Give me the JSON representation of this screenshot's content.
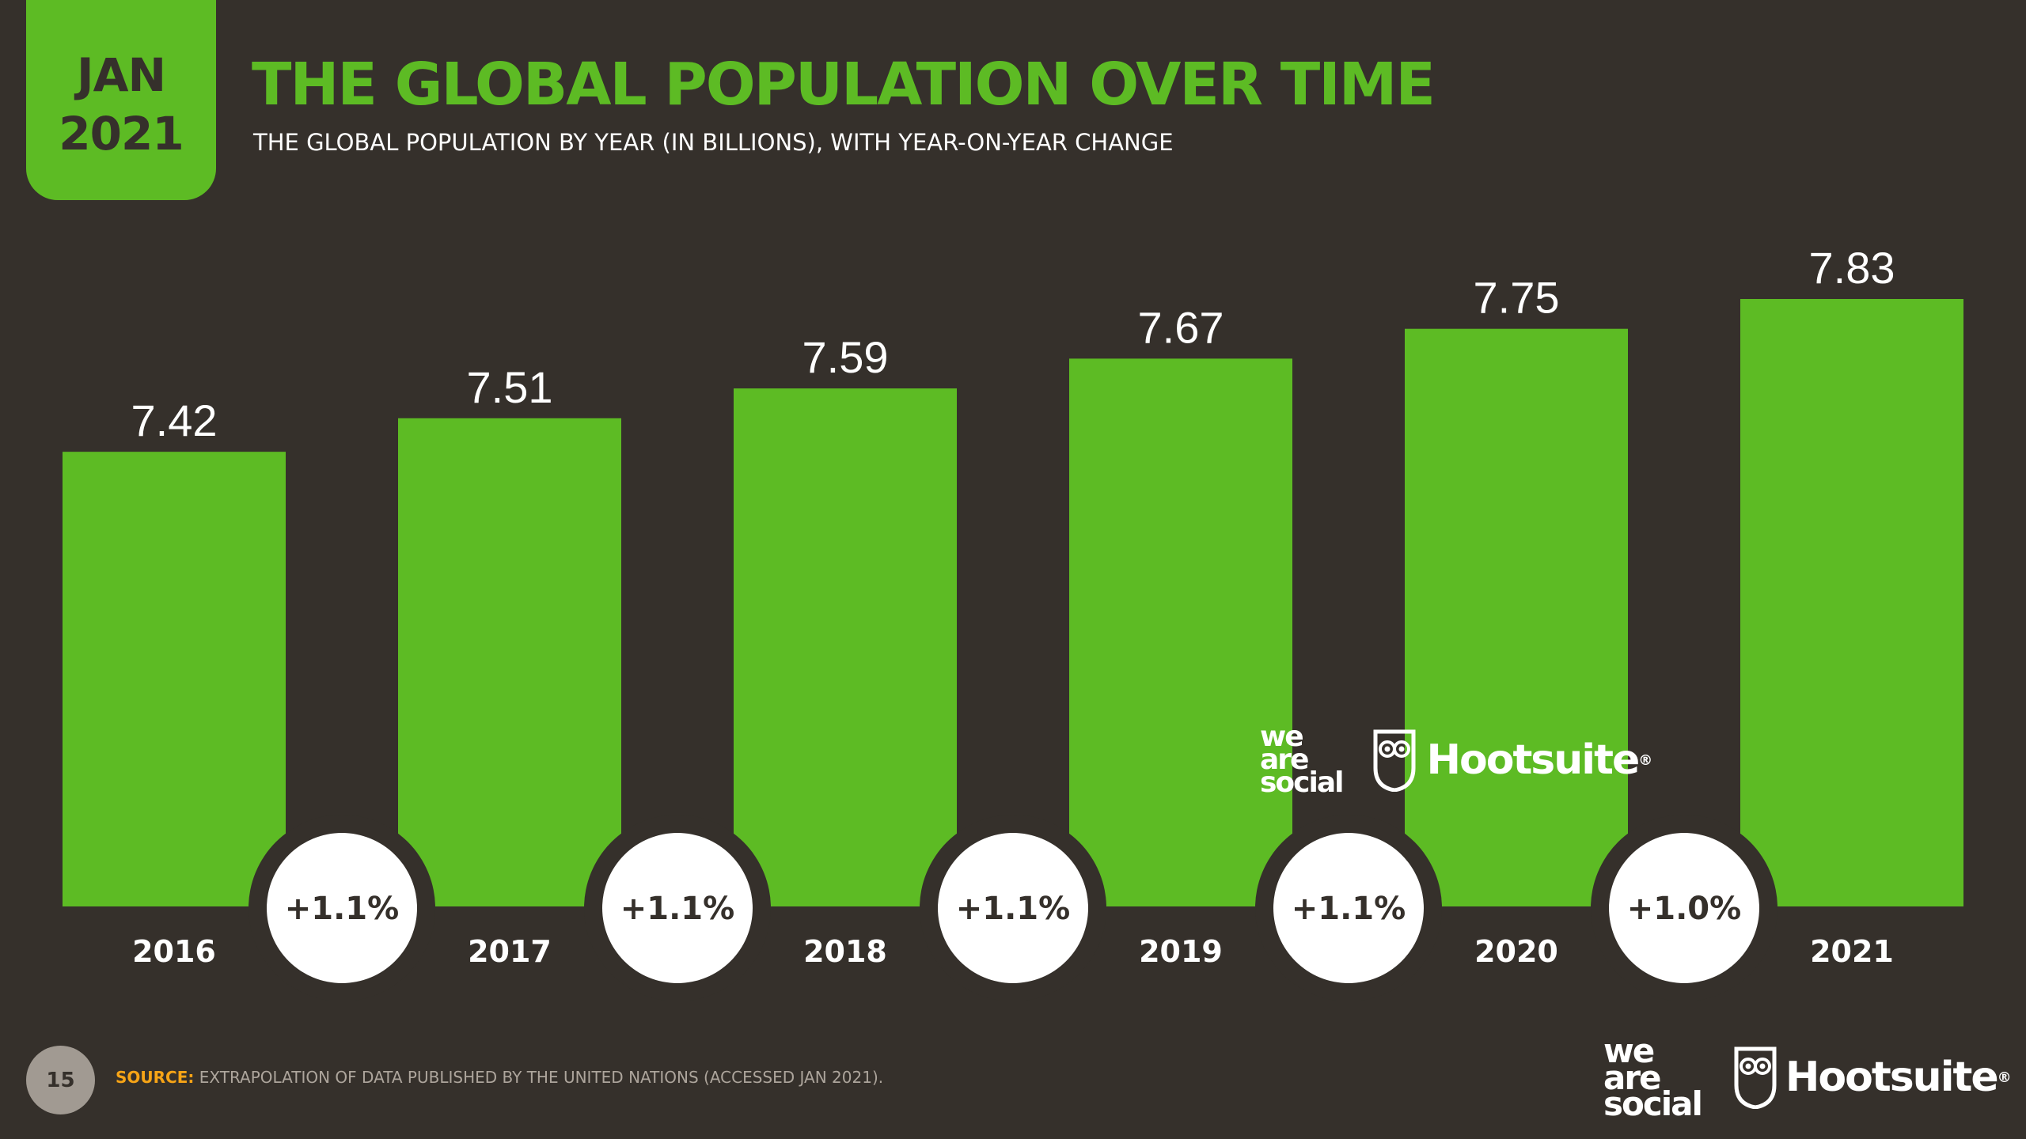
{
  "badge": {
    "month": "JAN",
    "year": "2021"
  },
  "header": {
    "title": "THE GLOBAL POPULATION OVER TIME",
    "subtitle": "THE GLOBAL POPULATION BY YEAR (IN BILLIONS), WITH YEAR-ON-YEAR CHANGE"
  },
  "colors": {
    "background": "#35302b",
    "accent": "#5dbb24",
    "source_label": "#f7a416",
    "bubble": "#ffffff"
  },
  "chart_data": {
    "type": "bar",
    "title": "THE GLOBAL POPULATION OVER TIME",
    "subtitle": "THE GLOBAL POPULATION BY YEAR (IN BILLIONS), WITH YEAR-ON-YEAR CHANGE",
    "categories": [
      "2016",
      "2017",
      "2018",
      "2019",
      "2020",
      "2021"
    ],
    "values": [
      7.42,
      7.51,
      7.59,
      7.67,
      7.75,
      7.83
    ],
    "value_labels": [
      "7.42",
      "7.51",
      "7.59",
      "7.67",
      "7.75",
      "7.83"
    ],
    "yoy_change": [
      "+1.1%",
      "+1.1%",
      "+1.1%",
      "+1.1%",
      "+1.0%"
    ],
    "xlabel": "",
    "ylabel": "",
    "ylim": [
      0,
      7.83
    ],
    "grid": false,
    "legend": "none",
    "bar_color": "#5dbb24"
  },
  "watermark": {
    "brand1": [
      "we",
      "are",
      "social"
    ],
    "brand2": "Hootsuite",
    "brand2_mark": "®"
  },
  "footer": {
    "page_number": "15",
    "source_label": "SOURCE:",
    "source_text": " EXTRAPOLATION OF DATA PUBLISHED BY THE UNITED NATIONS (ACCESSED JAN 2021).",
    "brand1": [
      "we",
      "are",
      "social"
    ],
    "brand2": "Hootsuite",
    "brand2_mark": "®"
  }
}
